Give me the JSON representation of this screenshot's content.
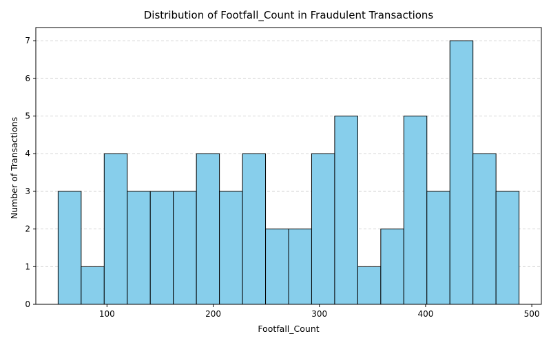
{
  "chart_data": {
    "type": "bar",
    "subtype": "histogram",
    "title": "Distribution of Footfall_Count in Fraudulent Transactions",
    "xlabel": "Footfall_Count",
    "ylabel": "Number of Transactions",
    "bin_edges": [
      54.0,
      75.7,
      97.4,
      119.1,
      140.8,
      162.5,
      184.2,
      205.9,
      227.6,
      249.3,
      271.0,
      292.7,
      314.4,
      336.1,
      357.8,
      379.5,
      401.2,
      422.9,
      444.6,
      466.3,
      488.0
    ],
    "values": [
      3,
      1,
      4,
      3,
      3,
      3,
      4,
      3,
      4,
      2,
      2,
      4,
      5,
      1,
      2,
      5,
      3,
      7,
      4,
      3
    ],
    "xlim": [
      33.0,
      509.0
    ],
    "ylim": [
      0,
      7.35
    ],
    "xticks": [
      100,
      200,
      300,
      400,
      500
    ],
    "yticks": [
      0,
      1,
      2,
      3,
      4,
      5,
      6,
      7
    ],
    "grid": "y-dashed",
    "colors": {
      "bar_fill": "#87ceeb",
      "bar_edge": "#000000",
      "grid": "#c8c8c8",
      "axis": "#000000"
    }
  }
}
